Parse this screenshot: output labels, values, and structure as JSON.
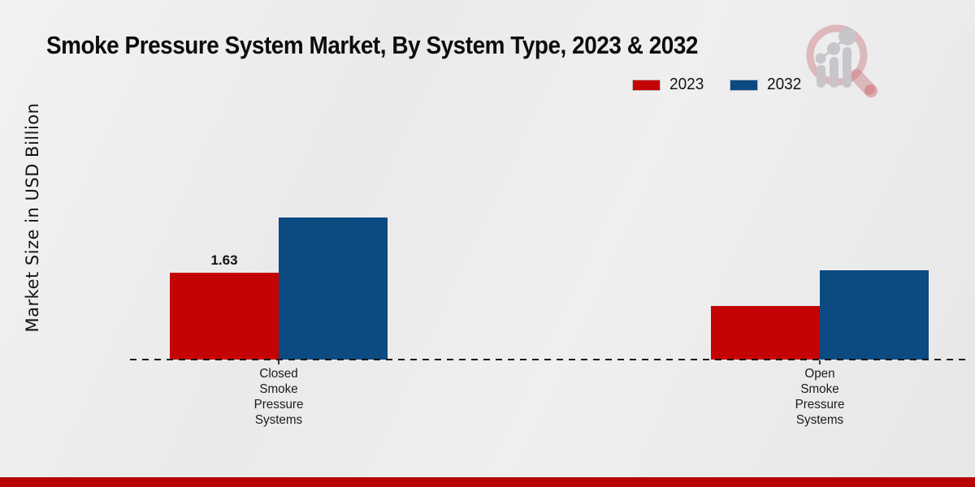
{
  "page": {
    "title": "Smoke Pressure System Market, By System Type, 2023 & 2032",
    "ylabel": "Market Size in USD Billion",
    "watermark_icon": "market-research-magnifier-logo",
    "footer_bar_color": "#ba0303"
  },
  "chart_data": {
    "type": "bar",
    "title": "Smoke Pressure System Market, By System Type, 2023 & 2032",
    "xlabel": "",
    "ylabel": "Market Size in USD Billion",
    "categories": [
      "Closed Smoke Pressure Systems",
      "Open Smoke Pressure Systems"
    ],
    "series": [
      {
        "name": "2023",
        "color": "#c40404",
        "values": [
          1.63,
          1.0
        ],
        "data_labels": [
          "1.63",
          null
        ]
      },
      {
        "name": "2032",
        "color": "#0c4a82",
        "values": [
          2.67,
          1.68
        ],
        "data_labels": [
          null,
          null
        ]
      }
    ],
    "legend_position": "top-right",
    "grid": false,
    "baseline_style": "dashed",
    "ylim": [
      0,
      3
    ]
  }
}
